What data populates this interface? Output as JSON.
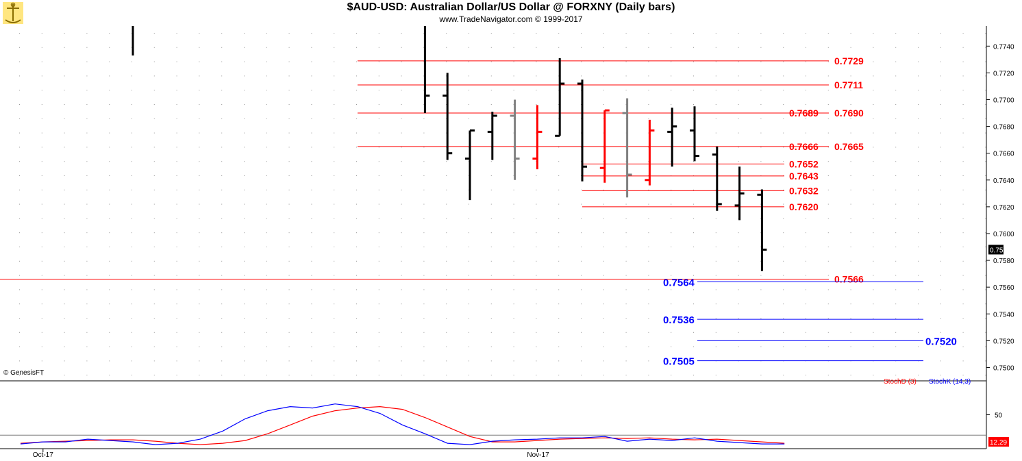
{
  "header": {
    "title": "$AUD-USD:  Australian Dollar/US Dollar @ FORXNY  (Daily bars)",
    "subtitle": "www.TradeNavigator.com © 1999-2017",
    "logo_icon": "trade-navigator-logo-icon"
  },
  "copyright": "© GenesisFT",
  "colors": {
    "up_bar": "#000000",
    "down_bar": "#ff0000",
    "neutral_bar": "#808080",
    "resistance": "#ff0000",
    "target": "#0000ff",
    "stoch_d": "#ff0000",
    "stoch_k": "#0000ff"
  },
  "chart_data": [
    {
      "type": "ohlc",
      "title": "$AUD-USD:  Australian Dollar/US Dollar @ FORXNY  (Daily bars)",
      "ylim": [
        0.749,
        0.7755
      ],
      "x_ticks": [
        {
          "label": "Oct-17",
          "index": 1
        },
        {
          "label": "Nov-17",
          "index": 23
        }
      ],
      "y_ticks": [
        "0.7740",
        "0.7720",
        "0.7700",
        "0.7680",
        "0.7660",
        "0.7640",
        "0.7620",
        "0.7600",
        "0.7580",
        "0.7560",
        "0.7540",
        "0.7520",
        "0.7500"
      ],
      "last_price": "0.7588",
      "bars": [
        {
          "i": 5,
          "o": null,
          "h": 0.7755,
          "l": 0.7733,
          "c": null,
          "color": "black"
        },
        {
          "i": 18,
          "o": null,
          "h": 0.7755,
          "l": 0.769,
          "c": 0.7703,
          "color": "black"
        },
        {
          "i": 19,
          "o": 0.7703,
          "h": 0.772,
          "l": 0.7655,
          "c": 0.766,
          "color": "black"
        },
        {
          "i": 20,
          "o": 0.7656,
          "h": 0.7677,
          "l": 0.7625,
          "c": 0.7677,
          "color": "black"
        },
        {
          "i": 21,
          "o": 0.7676,
          "h": 0.7691,
          "l": 0.7655,
          "c": 0.7688,
          "color": "black"
        },
        {
          "i": 22,
          "o": 0.7688,
          "h": 0.77,
          "l": 0.764,
          "c": 0.7656,
          "color": "gray"
        },
        {
          "i": 23,
          "o": 0.7656,
          "h": 0.7696,
          "l": 0.7648,
          "c": 0.7676,
          "color": "red"
        },
        {
          "i": 24,
          "o": 0.7673,
          "h": 0.7731,
          "l": 0.7673,
          "c": 0.7712,
          "color": "black"
        },
        {
          "i": 25,
          "o": 0.7712,
          "h": 0.7715,
          "l": 0.7639,
          "c": 0.765,
          "color": "black"
        },
        {
          "i": 26,
          "o": 0.7649,
          "h": 0.7692,
          "l": 0.7638,
          "c": 0.7692,
          "color": "red"
        },
        {
          "i": 27,
          "o": 0.769,
          "h": 0.7701,
          "l": 0.7627,
          "c": 0.7644,
          "color": "gray"
        },
        {
          "i": 28,
          "o": 0.764,
          "h": 0.7685,
          "l": 0.7636,
          "c": 0.7677,
          "color": "red"
        },
        {
          "i": 29,
          "o": 0.7676,
          "h": 0.7694,
          "l": 0.765,
          "c": 0.768,
          "color": "black"
        },
        {
          "i": 30,
          "o": 0.7677,
          "h": 0.7695,
          "l": 0.7654,
          "c": 0.7658,
          "color": "black"
        },
        {
          "i": 31,
          "o": 0.7659,
          "h": 0.7665,
          "l": 0.7617,
          "c": 0.7622,
          "color": "black"
        },
        {
          "i": 32,
          "o": 0.7621,
          "h": 0.765,
          "l": 0.761,
          "c": 0.763,
          "color": "black"
        },
        {
          "i": 33,
          "o": 0.7629,
          "h": 0.7633,
          "l": 0.7572,
          "c": 0.7588,
          "color": "black"
        }
      ],
      "resistance_lines": [
        {
          "value": 0.7729,
          "label": "0.7729",
          "from": 15,
          "to": 37
        },
        {
          "value": 0.7711,
          "label": "0.7711",
          "from": 15,
          "to": 37
        },
        {
          "value": 0.769,
          "label": "0.7690",
          "from": 15,
          "to": 37,
          "sub_label": "0.7689"
        },
        {
          "value": 0.7665,
          "label": "0.7665",
          "from": 15,
          "to": 37,
          "sub_label": "0.7666"
        },
        {
          "value": 0.7652,
          "label": "0.7652",
          "from": 25,
          "to": 35
        },
        {
          "value": 0.7643,
          "label": "0.7643",
          "from": 25,
          "to": 35
        },
        {
          "value": 0.7632,
          "label": "0.7632",
          "from": 25,
          "to": 35
        },
        {
          "value": 0.762,
          "label": "0.7620",
          "from": 25,
          "to": 35
        },
        {
          "value": 0.7566,
          "label": "0.7566",
          "from": 0,
          "to": 37
        }
      ],
      "target_lines": [
        {
          "value": 0.7564,
          "label": "0.7564",
          "side": "left"
        },
        {
          "value": 0.7536,
          "label": "0.7536",
          "side": "left"
        },
        {
          "value": 0.752,
          "label": "0.7520",
          "side": "right"
        },
        {
          "value": 0.7505,
          "label": "0.7505",
          "side": "left"
        }
      ]
    },
    {
      "type": "line",
      "ylim": [
        0,
        100
      ],
      "y_ticks": [
        "50"
      ],
      "last_value": "12.29",
      "legend": [
        "StochD (3)",
        "StochK (14,3)"
      ],
      "series": [
        {
          "name": "StochD (3)",
          "color": "red",
          "values": [
            8,
            10,
            11,
            12,
            13,
            13,
            11,
            8,
            6,
            8,
            12,
            22,
            35,
            48,
            56,
            60,
            62,
            58,
            46,
            32,
            18,
            10,
            10,
            12,
            14,
            15,
            16,
            15,
            16,
            14,
            13,
            14,
            12,
            10,
            8
          ]
        },
        {
          "name": "StochK (14,3)",
          "color": "blue",
          "values": [
            7,
            10,
            10,
            14,
            12,
            10,
            6,
            8,
            14,
            26,
            44,
            56,
            62,
            60,
            66,
            62,
            52,
            35,
            22,
            8,
            6,
            11,
            13,
            14,
            16,
            16,
            18,
            11,
            14,
            12,
            16,
            11,
            9,
            7,
            7
          ]
        }
      ]
    }
  ]
}
